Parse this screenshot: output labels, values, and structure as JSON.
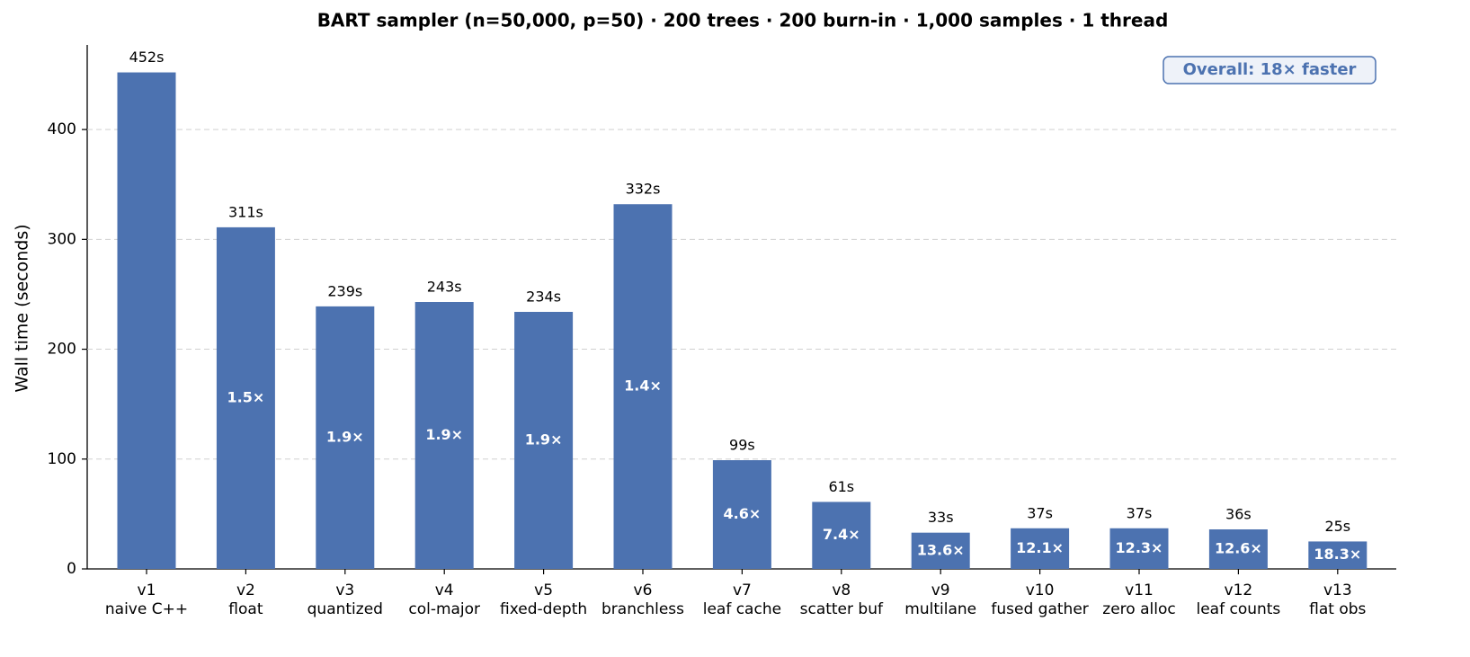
{
  "chart_data": {
    "type": "bar",
    "title": "BART sampler  (n=50,000, p=50)  ·  200 trees · 200 burn-in · 1,000 samples · 1 thread",
    "y_label": "Wall time (seconds)",
    "categories": [
      [
        "v1",
        "naive C++"
      ],
      [
        "v2",
        "float"
      ],
      [
        "v3",
        "quantized"
      ],
      [
        "v4",
        "col-major"
      ],
      [
        "v5",
        "fixed-depth"
      ],
      [
        "v6",
        "branchless"
      ],
      [
        "v7",
        "leaf cache"
      ],
      [
        "v8",
        "scatter buf"
      ],
      [
        "v9",
        "multilane"
      ],
      [
        "v10",
        "fused gather"
      ],
      [
        "v11",
        "zero alloc"
      ],
      [
        "v12",
        "leaf counts"
      ],
      [
        "v13",
        "flat obs"
      ]
    ],
    "values": [
      452,
      311,
      239,
      243,
      234,
      332,
      99,
      61,
      33,
      37,
      37,
      36,
      25
    ],
    "value_labels": [
      "452s",
      "311s",
      "239s",
      "243s",
      "234s",
      "332s",
      "99s",
      "61s",
      "33s",
      "37s",
      "37s",
      "36s",
      "25s"
    ],
    "speedup_labels": [
      null,
      "1.5×",
      "1.9×",
      "1.9×",
      "1.9×",
      "1.4×",
      "4.6×",
      "7.4×",
      "13.6×",
      "12.1×",
      "12.3×",
      "12.6×",
      "18.3×"
    ],
    "annotation": "Overall: 18× faster",
    "color": "#4c72b0",
    "ylim": [
      0,
      477
    ],
    "yticks": [
      0,
      100,
      200,
      300,
      400
    ],
    "grid": true
  }
}
